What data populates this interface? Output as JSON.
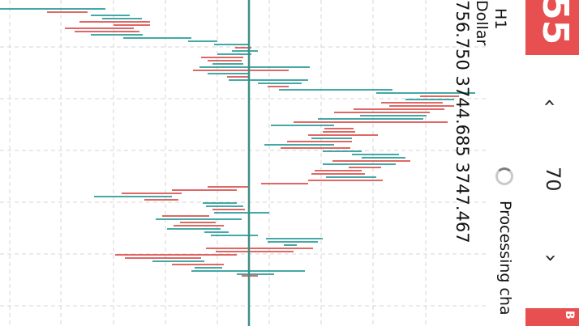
{
  "chart": {
    "symbol_timeframe": "H1",
    "currency": "Dollar",
    "prices": "756.750 3744.685 3747.467",
    "up_color": "#2a9d9a",
    "down_color": "#d9534f",
    "crosshair_color": "#3d8f88"
  },
  "status": {
    "processing_text": "Processing cha"
  },
  "trade": {
    "sell_value": "55",
    "buy_label": "B",
    "lot_value": "70",
    "prev_glyph": "‹",
    "next_glyph": "›"
  }
}
